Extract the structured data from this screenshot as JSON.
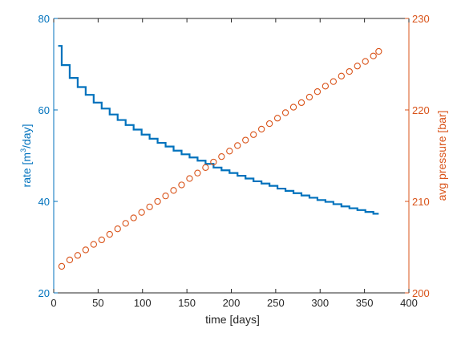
{
  "chart_data": {
    "type": "line",
    "xlabel": "time [days]",
    "ylabel_left_text": "rate [m",
    "ylabel_left_sup": "3",
    "ylabel_left_unit": "/day]",
    "ylabel_right": "avg pressure [bar]",
    "xlim": [
      0,
      400
    ],
    "ylim_left": [
      20,
      80
    ],
    "ylim_right": [
      200,
      230
    ],
    "xticks": [
      0,
      50,
      100,
      150,
      200,
      250,
      300,
      350,
      400
    ],
    "yticks_left": [
      20,
      40,
      60,
      80
    ],
    "yticks_right": [
      200,
      210,
      220,
      230
    ],
    "grid": false,
    "colors": {
      "left_axis": "#0072BD",
      "right_axis": "#D95319",
      "axis": "#262626"
    },
    "series": [
      {
        "axis": "left",
        "style": "step",
        "x": [
          9,
          18,
          27,
          36,
          45,
          54,
          63,
          72,
          81,
          90,
          99,
          108,
          117,
          126,
          135,
          144,
          153,
          162,
          171,
          180,
          189,
          198,
          207,
          216,
          225,
          234,
          243,
          252,
          261,
          270,
          279,
          288,
          297,
          306,
          315,
          324,
          333,
          342,
          351,
          360,
          366
        ],
        "values": [
          74,
          69.8,
          67,
          65,
          63.3,
          61.6,
          60.3,
          59,
          57.8,
          56.7,
          55.7,
          54.6,
          53.7,
          52.8,
          52,
          51.1,
          50.3,
          49.6,
          48.9,
          48.2,
          47.4,
          46.8,
          46.2,
          45.6,
          45,
          44.4,
          43.9,
          43.4,
          42.8,
          42.3,
          41.8,
          41.3,
          40.8,
          40.3,
          39.9,
          39.4,
          38.9,
          38.5,
          38.1,
          37.7,
          37.3
        ]
      },
      {
        "axis": "right",
        "style": "marker-circle",
        "x": [
          9,
          18,
          27,
          36,
          45,
          54,
          63,
          72,
          81,
          90,
          99,
          108,
          117,
          126,
          135,
          144,
          153,
          162,
          171,
          180,
          189,
          198,
          207,
          216,
          225,
          234,
          243,
          252,
          261,
          270,
          279,
          288,
          297,
          306,
          315,
          324,
          333,
          342,
          351,
          360,
          366
        ],
        "values": [
          202.9,
          203.6,
          204.1,
          204.7,
          205.3,
          205.8,
          206.4,
          207,
          207.6,
          208.2,
          208.8,
          209.4,
          210,
          210.6,
          211.2,
          211.8,
          212.5,
          213.1,
          213.7,
          214.3,
          214.9,
          215.5,
          216.1,
          216.7,
          217.3,
          217.9,
          218.5,
          219.1,
          219.7,
          220.3,
          220.8,
          221.4,
          222,
          222.6,
          223.1,
          223.7,
          224.2,
          224.8,
          225.3,
          225.9,
          226.4
        ]
      }
    ]
  }
}
